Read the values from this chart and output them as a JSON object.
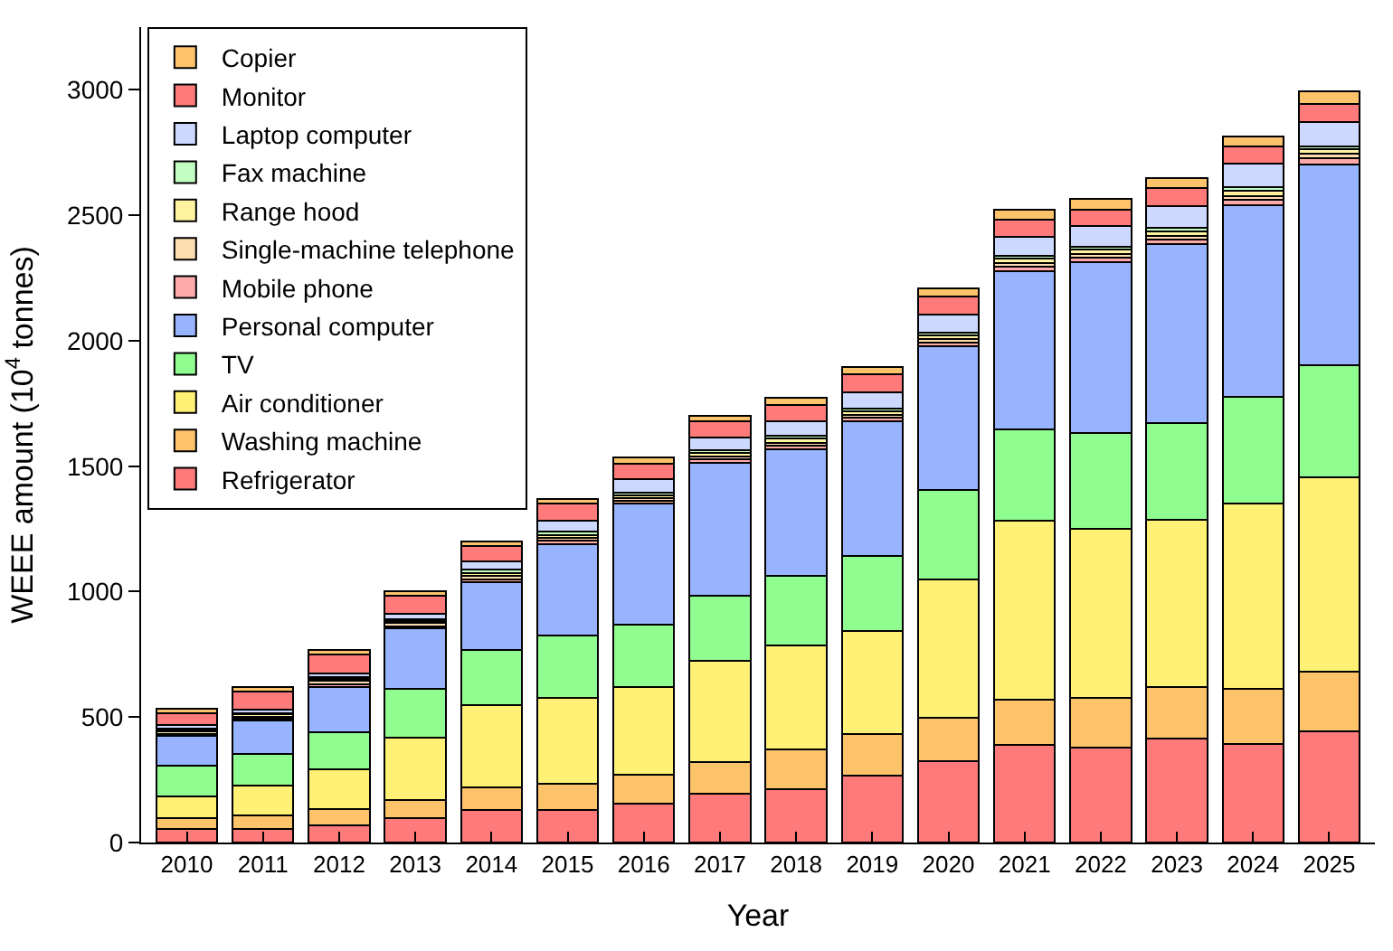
{
  "chart_data": {
    "type": "bar",
    "stacked": true,
    "xlabel": "Year",
    "ylabel": "WEEE amount (10$^{4}$ tonnes)",
    "categories": [
      "2010",
      "2011",
      "2012",
      "2013",
      "2014",
      "2015",
      "2016",
      "2017",
      "2018",
      "2019",
      "2020",
      "2021",
      "2022",
      "2023",
      "2024",
      "2025"
    ],
    "ylim": [
      0,
      3250
    ],
    "yticks": [
      0,
      500,
      1000,
      1500,
      2000,
      2500,
      3000
    ],
    "legend": "top left",
    "series": [
      {
        "name": "Refrigerator",
        "color": "#ff7b7b",
        "values": [
          55,
          55,
          68,
          96,
          130,
          130,
          154,
          195,
          214,
          265,
          324,
          389,
          378,
          416,
          394,
          445
        ]
      },
      {
        "name": "Washing machine",
        "color": "#fdc36b",
        "values": [
          41,
          53,
          65,
          73,
          91,
          103,
          116,
          125,
          156,
          168,
          174,
          181,
          197,
          204,
          217,
          236
        ]
      },
      {
        "name": "Air conditioner",
        "color": "#fff176",
        "values": [
          89,
          120,
          160,
          249,
          325,
          344,
          348,
          406,
          416,
          411,
          552,
          711,
          675,
          668,
          742,
          776
        ]
      },
      {
        "name": "TV",
        "color": "#90fd90",
        "values": [
          121,
          125,
          147,
          195,
          221,
          248,
          252,
          257,
          277,
          298,
          356,
          366,
          384,
          383,
          423,
          447
        ]
      },
      {
        "name": "Personal computer",
        "color": "#98b4fe",
        "values": [
          119,
          133,
          180,
          241,
          271,
          365,
          481,
          529,
          504,
          536,
          572,
          629,
          678,
          713,
          765,
          800
        ]
      },
      {
        "name": "Mobile phone",
        "color": "#ffaaaa",
        "values": [
          8,
          6,
          10,
          8,
          10,
          12,
          12,
          15,
          15,
          15,
          15,
          18,
          18,
          18,
          20,
          22
        ]
      },
      {
        "name": "Single-machine telephone",
        "color": "#fddcb0",
        "values": [
          12,
          10,
          15,
          12,
          15,
          12,
          10,
          10,
          12,
          12,
          13,
          15,
          15,
          15,
          16,
          18
        ]
      },
      {
        "name": "Range hood",
        "color": "#fff3a0",
        "values": [
          6,
          8,
          8,
          8,
          12,
          12,
          12,
          15,
          16,
          15,
          15,
          18,
          18,
          20,
          22,
          20
        ]
      },
      {
        "name": "Fax machine",
        "color": "#c2fec2",
        "values": [
          4,
          7,
          8,
          8,
          12,
          12,
          9,
          10,
          10,
          10,
          10,
          12,
          12,
          14,
          14,
          12
        ]
      },
      {
        "name": "Laptop computer",
        "color": "#cdd8fe",
        "values": [
          15,
          12,
          12,
          23,
          33,
          45,
          53,
          53,
          58,
          65,
          72,
          74,
          81,
          85,
          93,
          97
        ]
      },
      {
        "name": "Monitor",
        "color": "#ff7b7b",
        "values": [
          47,
          72,
          77,
          70,
          62,
          68,
          63,
          63,
          67,
          70,
          72,
          70,
          68,
          72,
          68,
          72
        ]
      },
      {
        "name": "Copier",
        "color": "#fdc36b",
        "values": [
          17,
          17,
          17,
          19,
          18,
          19,
          26,
          24,
          26,
          29,
          34,
          38,
          43,
          41,
          41,
          48
        ]
      }
    ]
  }
}
